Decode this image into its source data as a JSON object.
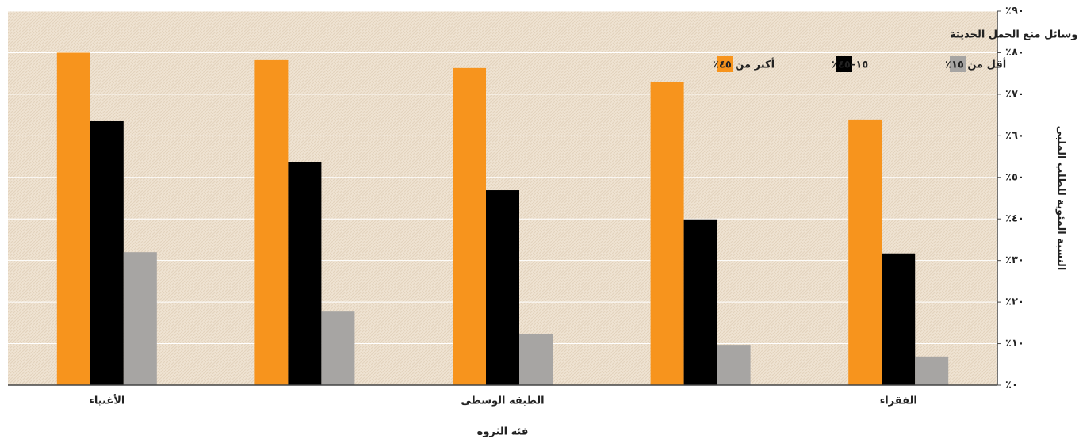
{
  "chart_data": {
    "type": "bar",
    "x_label": "فئة الثروة",
    "y_label": "النسبة المئوية للطلب الملبى",
    "legend_title": "فئة شيوع وسائل منع الحمل الحديثة",
    "categories": [
      "الأغنياء",
      null,
      "الطبقة الوسطى",
      null,
      "الفقراء"
    ],
    "series": [
      {
        "name": "أكثر من ٤٥٪",
        "color": "#f7941d",
        "values": [
          80,
          78.2,
          76.3,
          73,
          63.9
        ]
      },
      {
        "name": "١٥–٤٥٪",
        "color": "#000000",
        "values": [
          63.5,
          53.6,
          46.9,
          39.9,
          31.7
        ]
      },
      {
        "name": "أقل من ١٥٪",
        "color": "#a7a5a3",
        "values": [
          32,
          17.7,
          12.4,
          9.7,
          6.9
        ]
      }
    ],
    "ylim": [
      0,
      90
    ],
    "yticks": [
      {
        "value": 0,
        "label": "٪٠"
      },
      {
        "value": 10,
        "label": "٪١٠"
      },
      {
        "value": 20,
        "label": "٪٢٠"
      },
      {
        "value": 30,
        "label": "٪٣٠"
      },
      {
        "value": 40,
        "label": "٪٤٠"
      },
      {
        "value": 50,
        "label": "٪٥٠"
      },
      {
        "value": 60,
        "label": "٪٦٠"
      },
      {
        "value": 70,
        "label": "٪٧٠"
      },
      {
        "value": 80,
        "label": "٪٨٠"
      },
      {
        "value": 90,
        "label": "٪٩٠"
      }
    ],
    "y_axis_side": "right",
    "grid": true
  }
}
